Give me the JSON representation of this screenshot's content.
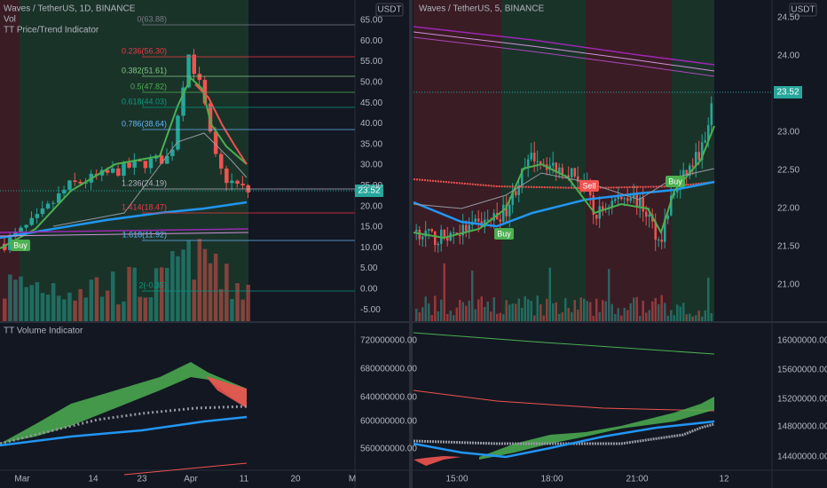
{
  "left_chart": {
    "title": "Waves / TetherUS, 1D, BINANCE",
    "indicators": [
      "Vol",
      "TT Price/Trend Indicator"
    ],
    "currency": "USDT",
    "price_tag": "23.52",
    "y_axis": [
      "65.00",
      "60.00",
      "55.00",
      "50.00",
      "45.00",
      "40.00",
      "35.00",
      "30.00",
      "25.00",
      "20.00",
      "15.00",
      "10.00",
      "5.00",
      "0.00",
      "-5.00"
    ],
    "fib_levels": [
      "0(63.88)",
      "0.236(56.30)",
      "0.382(51.61)",
      "0.5(47.82)",
      "0.618(44.03)",
      "0.786(38.64)",
      "1.236(24.19)",
      "1.414(18.47)",
      "1.618(11.92)",
      "2(-0.35)"
    ],
    "signals": [
      "Buy"
    ],
    "lower_panel": {
      "title": "TT Volume Indicator",
      "y_axis": [
        "720000000.00",
        "680000000.00",
        "640000000.00",
        "600000000.00",
        "560000000.00"
      ]
    },
    "x_axis": [
      "Mar",
      "14",
      "23",
      "Apr",
      "11",
      "20",
      "M"
    ]
  },
  "right_chart": {
    "title": "Waves / TetherUS, 5, BINANCE",
    "currency": "USDT",
    "price_tag": "23.52",
    "y_axis": [
      "24.50",
      "24.00",
      "23.00",
      "22.50",
      "22.00",
      "21.50",
      "21.00"
    ],
    "signals": [
      "Buy",
      "Sell",
      "Buy"
    ],
    "lower_panel": {
      "y_axis": [
        "16000000.00",
        "15600000.00",
        "15200000.00",
        "14800000.00",
        "14400000.00"
      ]
    },
    "x_axis": [
      "15:00",
      "18:00",
      "21:00",
      "12"
    ]
  }
}
